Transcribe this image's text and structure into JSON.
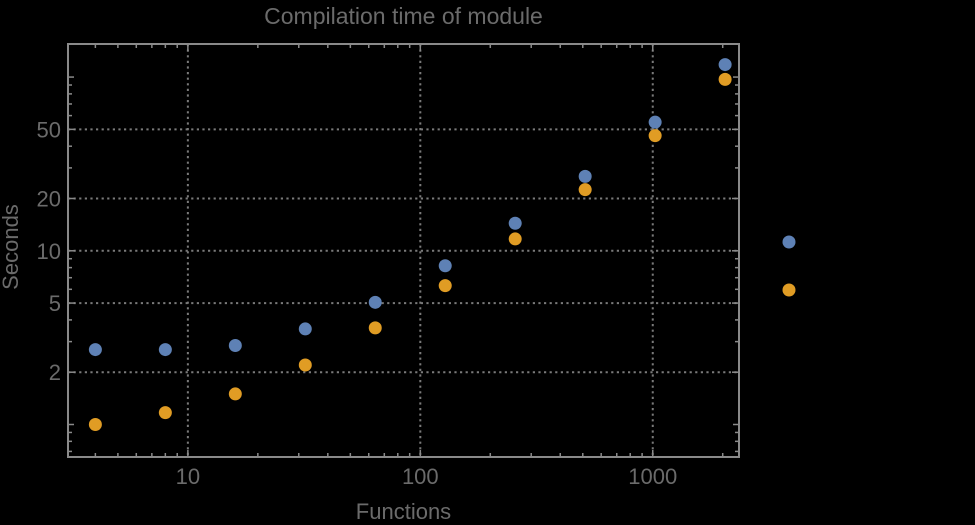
{
  "window": {
    "background_color": "#000000",
    "text_color": "#6b6b6b",
    "frame_color": "#8a8a8a",
    "gridline_color": "#7a7a7a"
  },
  "chart_data": {
    "type": "scatter",
    "title": "Compilation time of module",
    "xlabel": "Functions",
    "ylabel": "Seconds",
    "xscale": "log",
    "yscale": "log",
    "xlim": [
      3.05,
      2350
    ],
    "ylim": [
      0.65,
      155
    ],
    "grid": "dotted gridlines at labeled major ticks, frame on all four sides, ticks mirrored top/right",
    "x_ticks": [
      {
        "value": 10,
        "label": "10"
      },
      {
        "value": 100,
        "label": "100"
      },
      {
        "value": 1000,
        "label": "1000"
      }
    ],
    "x_minor_ticks": [
      4,
      5,
      6,
      7,
      8,
      9,
      20,
      30,
      40,
      50,
      60,
      70,
      80,
      90,
      200,
      300,
      400,
      500,
      600,
      700,
      800,
      900,
      2000
    ],
    "y_ticks": [
      {
        "value": 2,
        "label": "2"
      },
      {
        "value": 5,
        "label": "5"
      },
      {
        "value": 10,
        "label": "10"
      },
      {
        "value": 20,
        "label": "20"
      },
      {
        "value": 50,
        "label": "50"
      }
    ],
    "y_submajor_ticks": [
      1,
      100
    ],
    "y_minor_ticks": [
      0.7,
      0.8,
      0.9,
      3,
      4,
      6,
      7,
      8,
      9,
      30,
      40,
      60,
      70,
      80,
      90
    ],
    "series": [
      {
        "name": "series-blue",
        "color": "#5E81B5",
        "points": [
          [
            4,
            2.7
          ],
          [
            8,
            2.7
          ],
          [
            16,
            2.85
          ],
          [
            32,
            3.55
          ],
          [
            64,
            5.05
          ],
          [
            128,
            8.2
          ],
          [
            256,
            14.4
          ],
          [
            512,
            26.8
          ],
          [
            1024,
            55
          ],
          [
            2048,
            118
          ]
        ]
      },
      {
        "name": "series-orange",
        "color": "#E09C24",
        "points": [
          [
            4,
            1.0
          ],
          [
            8,
            1.17
          ],
          [
            16,
            1.5
          ],
          [
            32,
            2.2
          ],
          [
            64,
            3.6
          ],
          [
            128,
            6.3
          ],
          [
            256,
            11.7
          ],
          [
            512,
            22.5
          ],
          [
            1024,
            46
          ],
          [
            2048,
            97
          ]
        ]
      }
    ],
    "legend": {
      "position": "right-of-frame, vertically centered",
      "markers": [
        {
          "name": "legend-marker-blue",
          "color": "#5E81B5"
        },
        {
          "name": "legend-marker-orange",
          "color": "#E09C24"
        }
      ]
    }
  }
}
